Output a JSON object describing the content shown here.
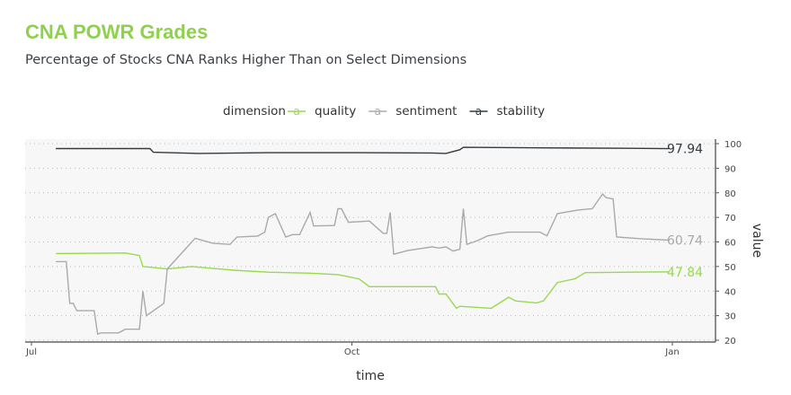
{
  "title": "CNA POWR Grades",
  "subtitle": "Percentage of Stocks CNA Ranks Higher Than on Select Dimensions",
  "chart_data": {
    "type": "line",
    "xlabel": "time",
    "ylabel": "value",
    "ylim": [
      20,
      100
    ],
    "yticks": [
      20,
      30,
      40,
      50,
      60,
      70,
      80,
      90,
      100
    ],
    "xticks": [
      {
        "label": "Jul",
        "date": "07-01"
      },
      {
        "label": "Oct",
        "date": "10-01"
      },
      {
        "label": "Jan",
        "date": "01-01"
      }
    ],
    "grid": true,
    "legend": {
      "title": "dimension",
      "glyph": "a",
      "placement": "top"
    },
    "series": [
      {
        "name": "quality",
        "color": "#98d94e",
        "end_label": "47.84",
        "points": [
          [
            "07-08",
            55.3
          ],
          [
            "07-28",
            55.5
          ],
          [
            "08-01",
            54.5
          ],
          [
            "08-02",
            50
          ],
          [
            "08-09",
            49
          ],
          [
            "08-16",
            50
          ],
          [
            "08-28",
            48.5
          ],
          [
            "09-07",
            47.7
          ],
          [
            "09-19",
            47.3
          ],
          [
            "09-27",
            46.7
          ],
          [
            "10-03",
            45
          ],
          [
            "10-06",
            41.8
          ],
          [
            "10-25",
            41.8
          ],
          [
            "10-26",
            38.8
          ],
          [
            "10-28",
            38.8
          ],
          [
            "10-31",
            33
          ],
          [
            "11-01",
            33.8
          ],
          [
            "11-10",
            33
          ],
          [
            "11-15",
            37.5
          ],
          [
            "11-17",
            36
          ],
          [
            "11-23",
            35.2
          ],
          [
            "11-25",
            36
          ],
          [
            "11-29",
            43.5
          ],
          [
            "12-04",
            45
          ],
          [
            "12-07",
            47.5
          ],
          [
            "12-20",
            47.7
          ],
          [
            "12-31",
            47.84
          ]
        ]
      },
      {
        "name": "sentiment",
        "color": "#aaaaaa",
        "end_label": "60.74",
        "points": [
          [
            "07-08",
            52
          ],
          [
            "07-11",
            52
          ],
          [
            "07-12",
            35
          ],
          [
            "07-13",
            35
          ],
          [
            "07-14",
            32
          ],
          [
            "07-19",
            32
          ],
          [
            "07-20",
            22.5
          ],
          [
            "07-21",
            23
          ],
          [
            "07-26",
            23
          ],
          [
            "07-28",
            24.5
          ],
          [
            "08-01",
            24.5
          ],
          [
            "08-02",
            40
          ],
          [
            "08-03",
            30
          ],
          [
            "08-08",
            35
          ],
          [
            "08-09",
            49
          ],
          [
            "08-17",
            61.5
          ],
          [
            "08-22",
            59.5
          ],
          [
            "08-27",
            59
          ],
          [
            "08-29",
            62
          ],
          [
            "09-04",
            62.4
          ],
          [
            "09-06",
            64
          ],
          [
            "09-07",
            70
          ],
          [
            "09-09",
            71.5
          ],
          [
            "09-12",
            62
          ],
          [
            "09-14",
            63
          ],
          [
            "09-16",
            63
          ],
          [
            "09-19",
            72
          ],
          [
            "09-20",
            66.5
          ],
          [
            "09-26",
            66.7
          ],
          [
            "09-27",
            73.5
          ],
          [
            "09-28",
            73.5
          ],
          [
            "09-30",
            68
          ],
          [
            "10-06",
            68.5
          ],
          [
            "10-10",
            63.5
          ],
          [
            "10-11",
            63.5
          ],
          [
            "10-12",
            72
          ],
          [
            "10-13",
            55
          ],
          [
            "10-17",
            56.5
          ],
          [
            "10-24",
            58
          ],
          [
            "10-26",
            57.5
          ],
          [
            "10-28",
            58
          ],
          [
            "10-30",
            56.3
          ],
          [
            "11-01",
            57
          ],
          [
            "11-02",
            73.5
          ],
          [
            "11-03",
            59
          ],
          [
            "11-06",
            60.5
          ],
          [
            "11-09",
            62.5
          ],
          [
            "11-15",
            64
          ],
          [
            "11-24",
            64
          ],
          [
            "11-26",
            62.5
          ],
          [
            "11-29",
            71.5
          ],
          [
            "12-01",
            72
          ],
          [
            "12-05",
            73
          ],
          [
            "12-09",
            73.5
          ],
          [
            "12-12",
            79.5
          ],
          [
            "12-13",
            78
          ],
          [
            "12-15",
            77.5
          ],
          [
            "12-16",
            62
          ],
          [
            "12-23",
            61.3
          ],
          [
            "12-31",
            60.74
          ]
        ]
      },
      {
        "name": "stability",
        "color": "#333a40",
        "end_label": "97.94",
        "points": [
          [
            "07-08",
            98
          ],
          [
            "08-04",
            98
          ],
          [
            "08-05",
            96.5
          ],
          [
            "08-18",
            96
          ],
          [
            "09-07",
            96.3
          ],
          [
            "10-03",
            96.3
          ],
          [
            "10-24",
            96.2
          ],
          [
            "10-28",
            96
          ],
          [
            "11-01",
            97.5
          ],
          [
            "11-02",
            98.5
          ],
          [
            "11-24",
            98.3
          ],
          [
            "12-20",
            98.1
          ],
          [
            "12-31",
            97.94
          ]
        ]
      }
    ]
  }
}
